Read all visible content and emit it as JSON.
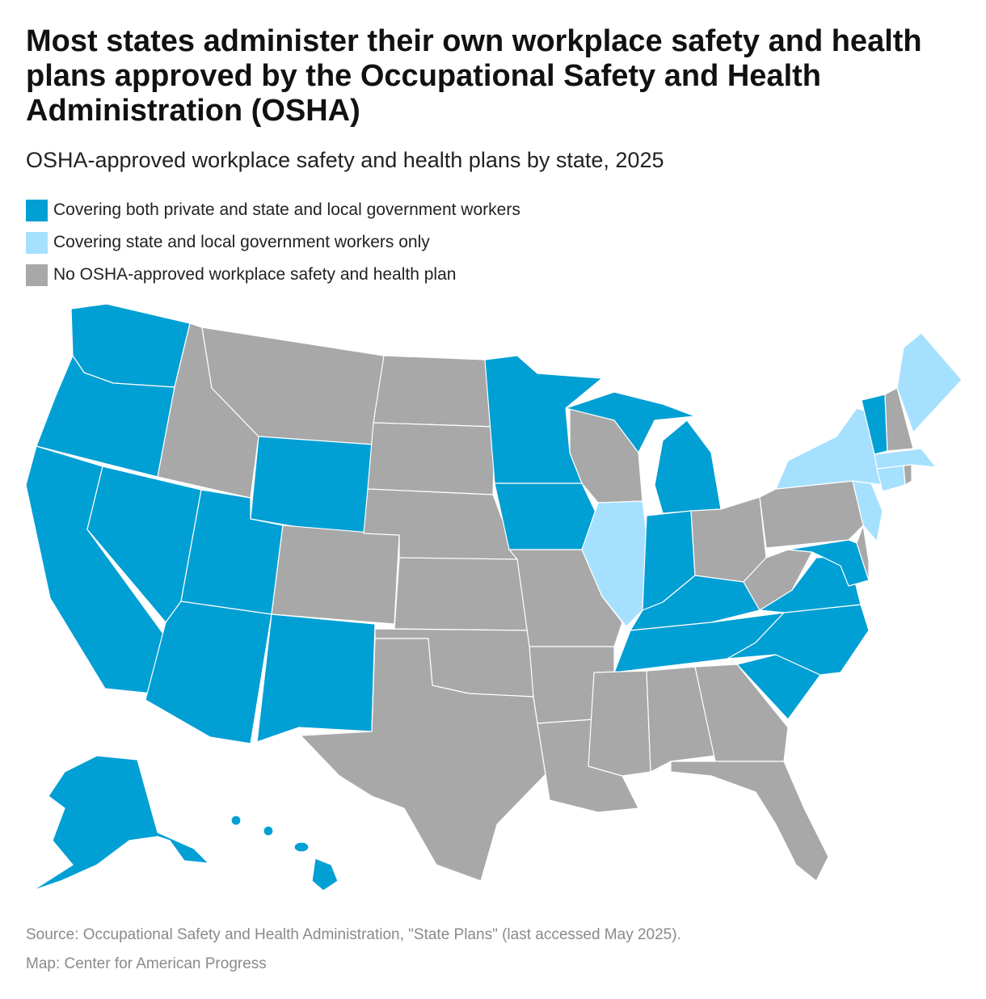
{
  "title": "Most states administer their own workplace safety and health plans approved by the Occupational Safety and Health Administration (OSHA)",
  "subtitle": "OSHA-approved workplace safety and health plans by state, 2025",
  "colors": {
    "both": "#009fd4",
    "public_only": "#a6e0ff",
    "none": "#a8a8a8",
    "border": "#ffffff"
  },
  "legend": [
    {
      "category": "both",
      "label": "Covering both private and state and local government workers"
    },
    {
      "category": "public_only",
      "label": "Covering state and local government workers only"
    },
    {
      "category": "none",
      "label": "No OSHA-approved workplace safety and health plan"
    }
  ],
  "states": {
    "WA": "both",
    "OR": "both",
    "CA": "both",
    "NV": "both",
    "AZ": "both",
    "UT": "both",
    "WY": "both",
    "NM": "both",
    "AK": "both",
    "HI": "both",
    "MN": "both",
    "IA": "both",
    "MI": "both",
    "IN": "both",
    "KY": "both",
    "TN": "both",
    "NC": "both",
    "SC": "both",
    "VA": "both",
    "MD": "both",
    "VT": "both",
    "IL": "public_only",
    "NY": "public_only",
    "NJ": "public_only",
    "CT": "public_only",
    "ME": "public_only",
    "MA": "public_only",
    "ID": "none",
    "MT": "none",
    "ND": "none",
    "SD": "none",
    "NE": "none",
    "KS": "none",
    "CO": "none",
    "OK": "none",
    "TX": "none",
    "MO": "none",
    "AR": "none",
    "LA": "none",
    "MS": "none",
    "AL": "none",
    "GA": "none",
    "FL": "none",
    "WI": "none",
    "OH": "none",
    "PA": "none",
    "WV": "none",
    "NH": "none",
    "DE": "none",
    "RI": "none"
  },
  "footer": {
    "source": "Source: Occupational Safety and Health Administration, \"State Plans\" (last accessed May 2025).",
    "credit": "Map: Center for American Progress"
  }
}
